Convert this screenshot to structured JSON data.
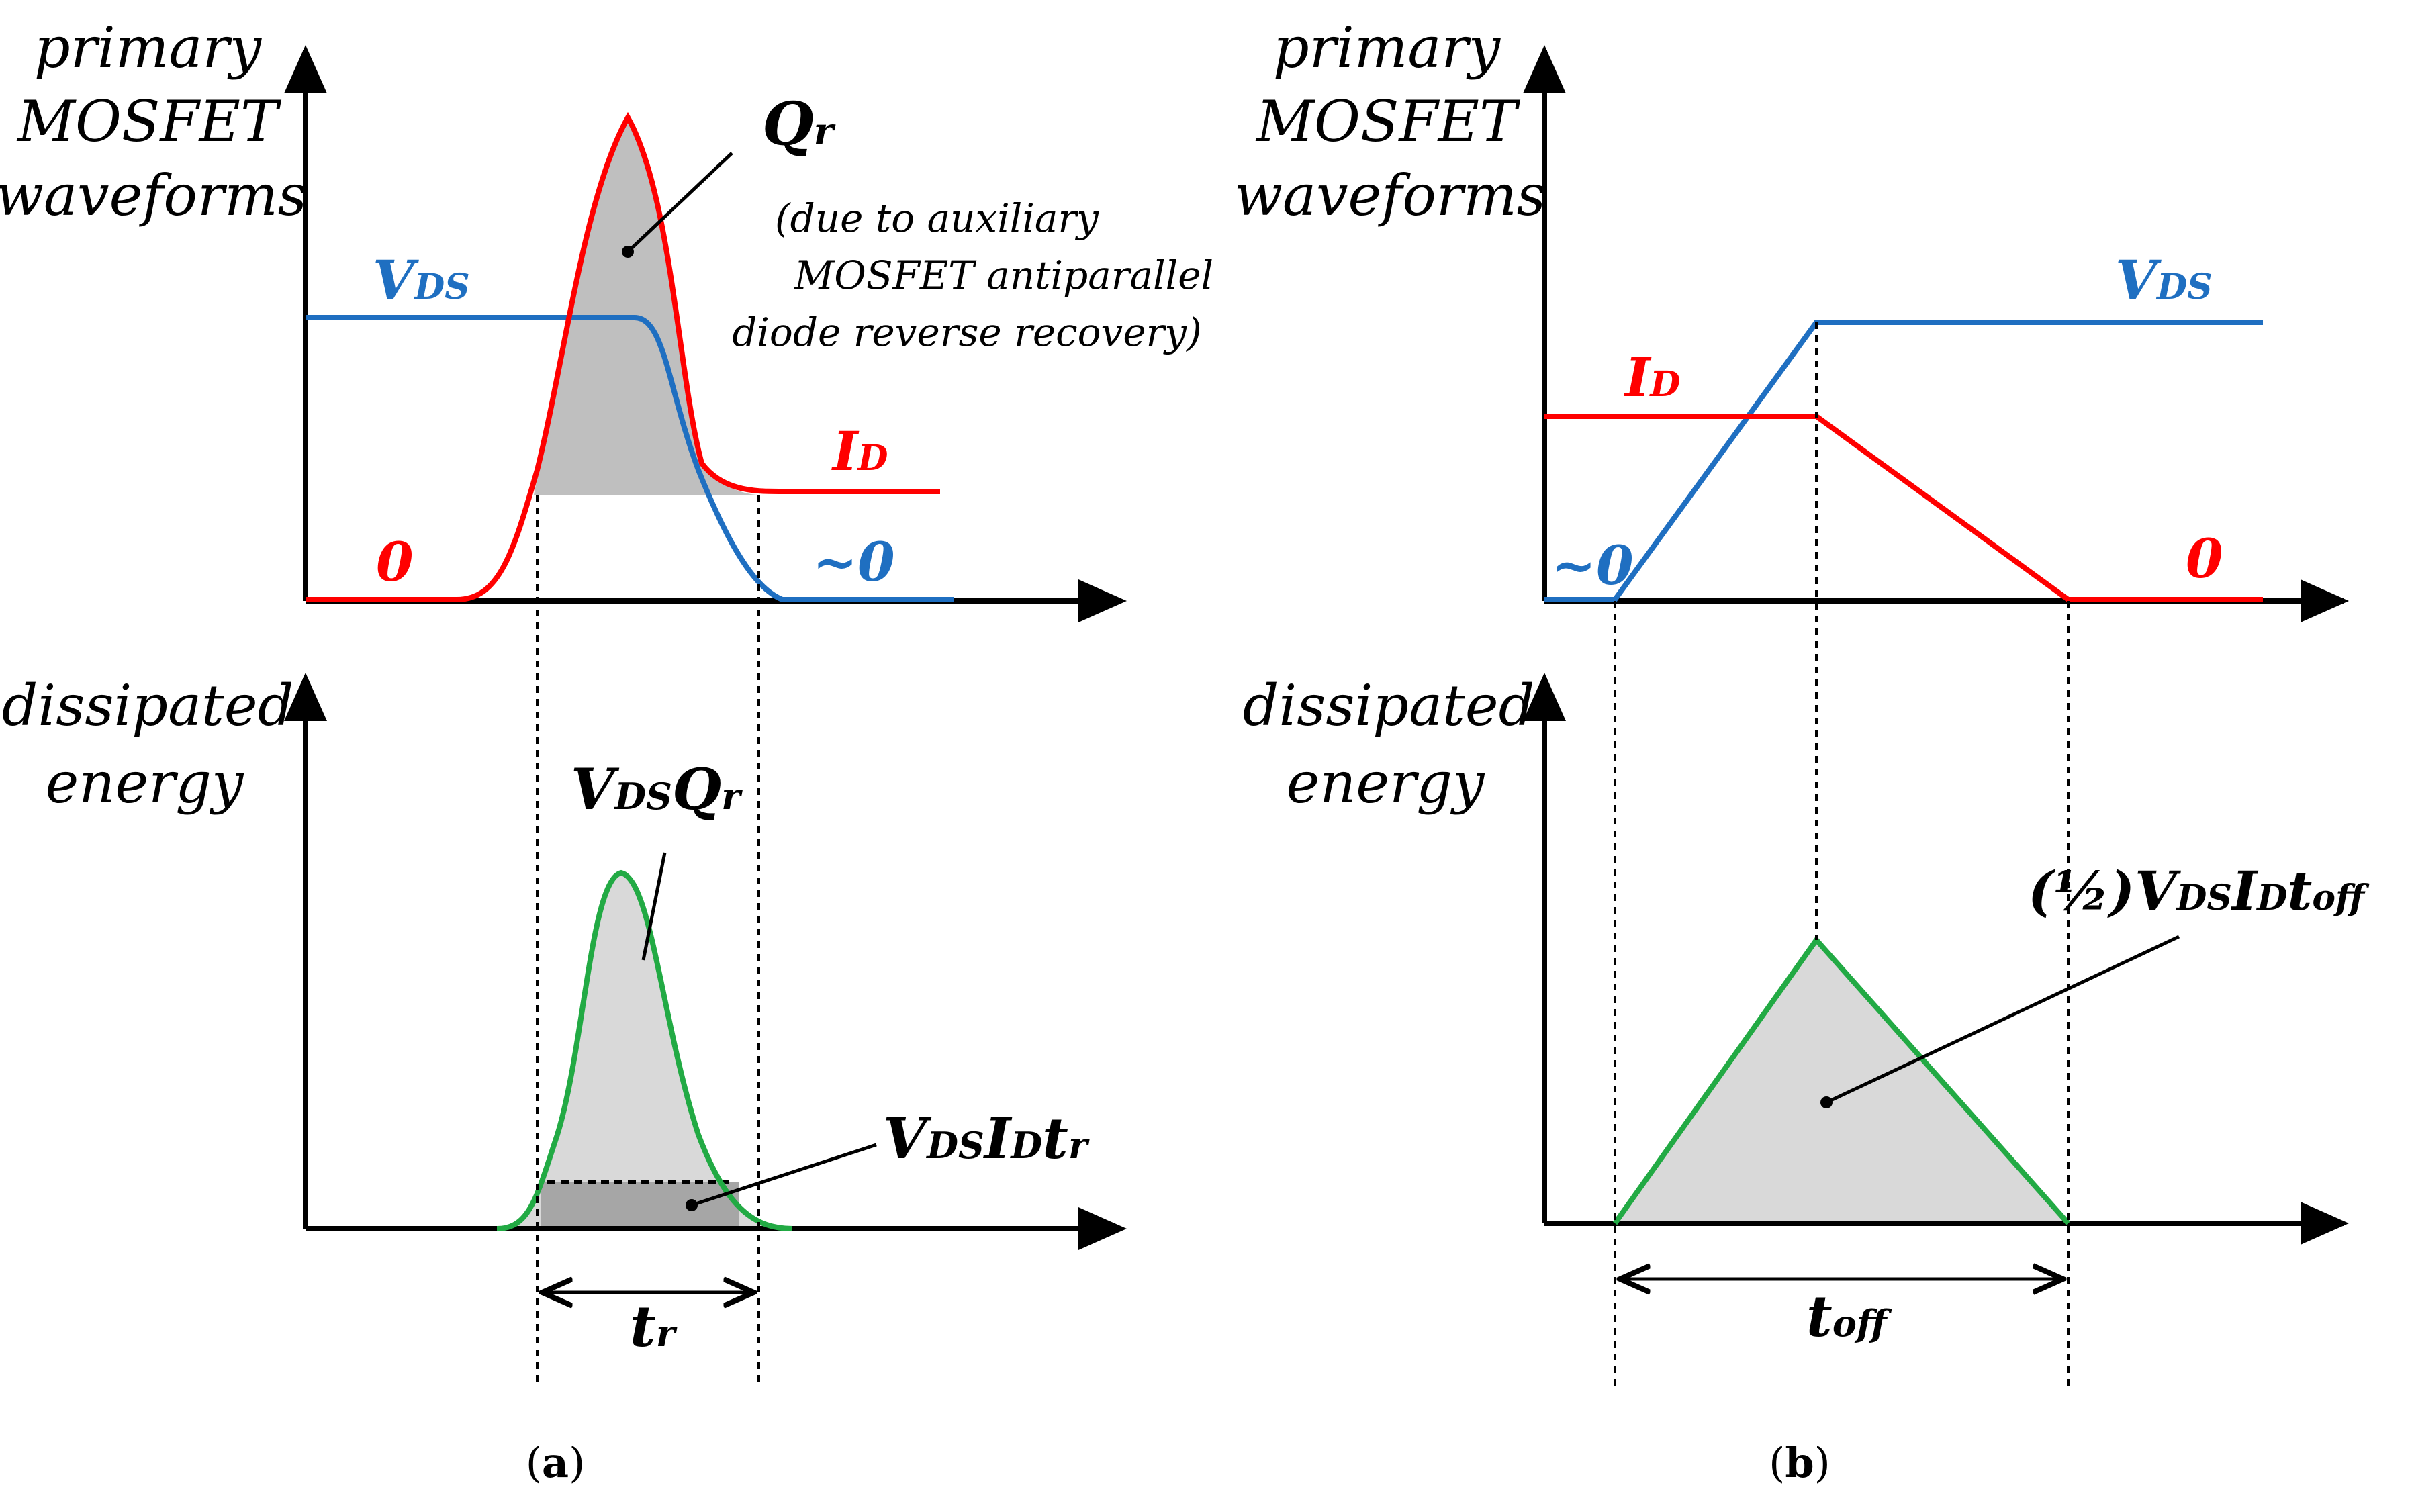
{
  "colors": {
    "vds": "#1f6fc1",
    "id": "#ff0000",
    "energy": "#22aa44",
    "shade_light": "#d9d9d9",
    "shade_dark": "#a6a6a6",
    "axis": "#000000"
  },
  "panel_a": {
    "top_ylabel": [
      "primary",
      "MOSFET",
      "waveforms"
    ],
    "bottom_ylabel": [
      "dissipated",
      "energy"
    ],
    "vds_main": "V",
    "vds_sub": "DS",
    "id_main": "I",
    "id_sub": "D",
    "zero_id": "0",
    "zero_vds": "~0",
    "qr_main": "Q",
    "qr_sub": "r",
    "note_lines": [
      "(due to auxiliary",
      "MOSFET antiparallel",
      "diode reverse recovery)"
    ],
    "energy_peak_label": {
      "v": "V",
      "ds": "DS",
      "q": "Q",
      "r": "r"
    },
    "energy_base_label": {
      "v": "V",
      "ds": "DS",
      "i": "I",
      "d": "D",
      "t": "t",
      "r": "r"
    },
    "time_label": {
      "main": "t",
      "sub": "r"
    },
    "caption": {
      "open": "(",
      "letter": "a",
      "close": ")"
    }
  },
  "panel_b": {
    "top_ylabel": [
      "primary",
      "MOSFET",
      "waveforms"
    ],
    "bottom_ylabel": [
      "dissipated",
      "energy"
    ],
    "vds_main": "V",
    "vds_sub": "DS",
    "id_main": "I",
    "id_sub": "D",
    "zero_vds": "~0",
    "zero_id": "0",
    "energy_label": {
      "half": "(½)",
      "v": "V",
      "ds": "DS",
      "i": "I",
      "d": "D",
      "t": "t",
      "off": "off"
    },
    "time_label": {
      "main": "t",
      "sub": "off"
    },
    "caption": {
      "open": "(",
      "letter": "b",
      "close": ")"
    }
  }
}
